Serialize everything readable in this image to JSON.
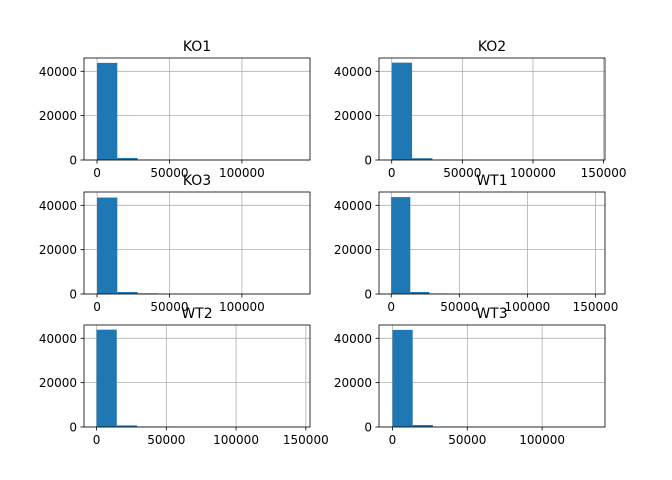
{
  "chart_data": [
    {
      "type": "bar",
      "title": "KO1",
      "xlim": [
        -9000,
        147000
      ],
      "ylim": [
        0,
        46000
      ],
      "xticks": [
        0,
        50000,
        100000
      ],
      "xtick_labels": [
        "0",
        "50000",
        "100000"
      ],
      "yticks": [
        0,
        20000,
        40000
      ],
      "ytick_labels": [
        "0",
        "20000",
        "40000"
      ],
      "grid": true,
      "bin_edges": [
        0,
        14000,
        28000,
        42000,
        56000,
        70000,
        84000,
        98000,
        112000,
        126000,
        140000
      ],
      "values": [
        43800,
        900,
        150,
        60,
        30,
        15,
        10,
        5,
        3,
        2
      ]
    },
    {
      "type": "bar",
      "title": "KO2",
      "xlim": [
        -9000,
        151000
      ],
      "ylim": [
        0,
        46000
      ],
      "xticks": [
        0,
        50000,
        100000,
        150000
      ],
      "xtick_labels": [
        "0",
        "50000",
        "100000",
        "150000"
      ],
      "yticks": [
        0,
        20000,
        40000
      ],
      "ytick_labels": [
        "0",
        "20000",
        "40000"
      ],
      "grid": true,
      "bin_edges": [
        0,
        14400,
        28800,
        43200,
        57600,
        72000,
        86400,
        100800,
        115200,
        129600,
        144000
      ],
      "values": [
        43900,
        800,
        150,
        60,
        30,
        15,
        10,
        5,
        3,
        2
      ]
    },
    {
      "type": "bar",
      "title": "KO3",
      "xlim": [
        -9000,
        147000
      ],
      "ylim": [
        0,
        46000
      ],
      "xticks": [
        0,
        50000,
        100000
      ],
      "xtick_labels": [
        "0",
        "50000",
        "100000"
      ],
      "yticks": [
        0,
        20000,
        40000
      ],
      "ytick_labels": [
        "0",
        "20000",
        "40000"
      ],
      "grid": true,
      "bin_edges": [
        0,
        14000,
        28000,
        42000,
        56000,
        70000,
        84000,
        98000,
        112000,
        126000,
        140000
      ],
      "values": [
        43500,
        900,
        300,
        100,
        40,
        20,
        10,
        5,
        3,
        2
      ]
    },
    {
      "type": "bar",
      "title": "WT1",
      "xlim": [
        -9000,
        157000
      ],
      "ylim": [
        0,
        46000
      ],
      "xticks": [
        0,
        50000,
        100000,
        150000
      ],
      "xtick_labels": [
        "0",
        "50000",
        "100000",
        "150000"
      ],
      "yticks": [
        0,
        20000,
        40000
      ],
      "ytick_labels": [
        "0",
        "20000",
        "40000"
      ],
      "grid": true,
      "bin_edges": [
        0,
        14000,
        28000,
        42000,
        56000,
        70000,
        84000,
        98000,
        112000,
        126000,
        140000
      ],
      "values": [
        43700,
        900,
        250,
        80,
        30,
        15,
        10,
        5,
        3,
        2
      ]
    },
    {
      "type": "bar",
      "title": "WT2",
      "xlim": [
        -9000,
        153000
      ],
      "ylim": [
        0,
        46000
      ],
      "xticks": [
        0,
        50000,
        100000,
        150000
      ],
      "xtick_labels": [
        "0",
        "50000",
        "100000",
        "150000"
      ],
      "yticks": [
        0,
        20000,
        40000
      ],
      "ytick_labels": [
        "0",
        "20000",
        "40000"
      ],
      "grid": true,
      "bin_edges": [
        0,
        14500,
        29000,
        43500,
        58000,
        72500,
        87000,
        101500,
        116000,
        130500,
        145000
      ],
      "values": [
        43900,
        700,
        150,
        60,
        30,
        15,
        10,
        5,
        3,
        2
      ]
    },
    {
      "type": "bar",
      "title": "WT3",
      "xlim": [
        -9000,
        142000
      ],
      "ylim": [
        0,
        46000
      ],
      "xticks": [
        0,
        50000,
        100000
      ],
      "xtick_labels": [
        "0",
        "50000",
        "100000"
      ],
      "yticks": [
        0,
        20000,
        40000
      ],
      "ytick_labels": [
        "0",
        "20000",
        "40000"
      ],
      "grid": true,
      "bin_edges": [
        0,
        13500,
        27000,
        40500,
        54000,
        67500,
        81000,
        94500,
        108000,
        121500,
        135000
      ],
      "values": [
        43800,
        900,
        150,
        60,
        30,
        15,
        10,
        5,
        3,
        2
      ]
    }
  ],
  "colors": {
    "bar": "#1f77b4",
    "grid": "#b0b0b0",
    "axis": "#000000"
  }
}
